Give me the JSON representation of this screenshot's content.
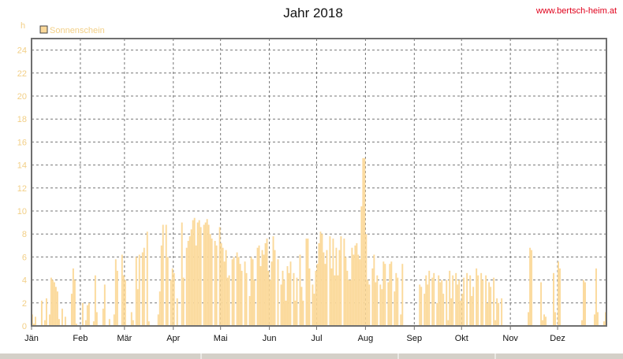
{
  "page": {
    "website": "www.bertsch-heim.at"
  },
  "chart_data": {
    "type": "bar",
    "title": "Jahr 2018",
    "ylabel": "h",
    "xlabel": "",
    "ylim": [
      0,
      25
    ],
    "yticks": [
      0,
      2,
      4,
      6,
      8,
      10,
      12,
      14,
      16,
      18,
      20,
      22,
      24
    ],
    "grid": true,
    "legend_position": "top-left",
    "bar_color": "#fbd99a",
    "months": [
      "Jän",
      "Feb",
      "Mär",
      "Apr",
      "Mai",
      "Jun",
      "Jul",
      "Aug",
      "Sep",
      "Okt",
      "Nov",
      "Dez"
    ],
    "series": [
      {
        "name": "Sonnenschein",
        "daily_values_by_month": [
          [
            1.0,
            0.2,
            0.8,
            0.0,
            0.0,
            0.0,
            2.2,
            0.0,
            0.5,
            2.4,
            0.0,
            1.0,
            4.2,
            4.0,
            3.8,
            3.4,
            3.0,
            0.6,
            0.0,
            1.5,
            0.0,
            0.8,
            0.0,
            0.0,
            0.0,
            2.8,
            5.0,
            4.0,
            0.2,
            0.0,
            0.0
          ],
          [
            0.0,
            2.0,
            0.0,
            0.5,
            1.8,
            2.0,
            0.0,
            0.0,
            0.4,
            4.4,
            1.2,
            0.0,
            0.0,
            0.0,
            1.5,
            3.6,
            0.0,
            0.0,
            0.6,
            0.0,
            0.0,
            1.0,
            5.8,
            4.8,
            0.0,
            0.0,
            6.2,
            4.4
          ],
          [
            4.0,
            0.0,
            0.0,
            0.0,
            1.2,
            0.5,
            0.0,
            6.0,
            3.2,
            6.2,
            0.0,
            6.4,
            6.8,
            0.0,
            8.2,
            0.4,
            0.0,
            0.0,
            0.0,
            0.0,
            0.0,
            1.0,
            3.0,
            7.0,
            8.8,
            0.0,
            8.8,
            6.0,
            0.0,
            4.0,
            5.0
          ],
          [
            4.6,
            0.0,
            2.4,
            0.0,
            0.0,
            9.0,
            4.2,
            0.0,
            6.8,
            7.4,
            7.8,
            8.4,
            9.2,
            9.4,
            7.0,
            9.0,
            9.2,
            8.6,
            0.0,
            8.8,
            9.0,
            9.3,
            8.8,
            8.0,
            7.6,
            0.0,
            7.4,
            7.0,
            0.0,
            8.6
          ],
          [
            7.2,
            6.8,
            5.6,
            6.6,
            4.2,
            4.4,
            0.0,
            5.8,
            6.0,
            0.0,
            6.4,
            6.0,
            5.4,
            4.8,
            0.0,
            5.6,
            4.6,
            0.0,
            2.6,
            6.0,
            5.8,
            4.0,
            0.0,
            6.8,
            7.0,
            5.2,
            6.6,
            6.2,
            7.2,
            7.6,
            4.8
          ],
          [
            4.0,
            5.6,
            7.8,
            6.6,
            0.0,
            5.8,
            0.0,
            3.6,
            4.8,
            4.0,
            2.2,
            5.2,
            4.6,
            5.6,
            0.0,
            4.6,
            2.2,
            4.2,
            0.0,
            6.2,
            3.4,
            2.2,
            0.0,
            7.6,
            7.6,
            5.0,
            0.0,
            3.6,
            2.8,
            4.8
          ],
          [
            5.4,
            7.2,
            8.2,
            8.0,
            6.4,
            5.4,
            6.6,
            0.0,
            7.8,
            5.0,
            7.6,
            4.4,
            6.8,
            4.4,
            6.6,
            7.8,
            0.0,
            7.6,
            6.0,
            4.8,
            4.0,
            4.0,
            6.8,
            6.2,
            7.0,
            7.2,
            6.2,
            5.8,
            10.4,
            14.6,
            14.6
          ],
          [
            8.0,
            4.0,
            3.6,
            0.0,
            5.0,
            6.2,
            3.8,
            4.4,
            0.0,
            3.6,
            3.2,
            5.6,
            5.4,
            0.0,
            3.8,
            5.4,
            5.6,
            0.0,
            3.0,
            4.6,
            4.2,
            0.0,
            1.0,
            5.4,
            0.0,
            0.0,
            0.0,
            0.0,
            0.0,
            0.0,
            0.0
          ],
          [
            0.0,
            0.0,
            0.0,
            3.6,
            3.4,
            0.0,
            2.8,
            4.4,
            3.6,
            4.8,
            0.0,
            4.2,
            4.6,
            0.0,
            2.0,
            4.4,
            3.8,
            4.0,
            2.8,
            0.0,
            4.0,
            0.5,
            4.8,
            2.4,
            4.4,
            0.0,
            4.6,
            3.6,
            4.0,
            2.2
          ],
          [
            2.8,
            4.2,
            0.0,
            4.6,
            0.0,
            4.4,
            2.6,
            3.4,
            0.0,
            5.0,
            4.4,
            0.0,
            4.6,
            4.0,
            0.0,
            4.4,
            2.0,
            3.8,
            3.4,
            0.0,
            4.2,
            0.5,
            2.4,
            2.0,
            0.0,
            2.4,
            0.0,
            0.0,
            0.0,
            0.0,
            0.0
          ],
          [
            0.0,
            0.0,
            0.0,
            0.0,
            0.0,
            0.0,
            0.0,
            0.0,
            0.0,
            0.0,
            0.0,
            1.2,
            6.8,
            6.6,
            0.0,
            0.0,
            0.0,
            0.0,
            0.0,
            3.8,
            0.5,
            1.0,
            0.8,
            0.0,
            0.0,
            0.0,
            0.0,
            4.6,
            1.2,
            0.0
          ],
          [
            5.6,
            5.0,
            0.0,
            0.0,
            0.0,
            0.0,
            0.0,
            0.0,
            0.0,
            0.0,
            0.0,
            0.0,
            0.0,
            0.0,
            0.0,
            0.5,
            4.0,
            3.8,
            0.0,
            0.0,
            0.0,
            0.0,
            0.0,
            1.0,
            5.0,
            1.2,
            0.0,
            0.0,
            0.0,
            0.4,
            1.2
          ]
        ]
      }
    ]
  }
}
